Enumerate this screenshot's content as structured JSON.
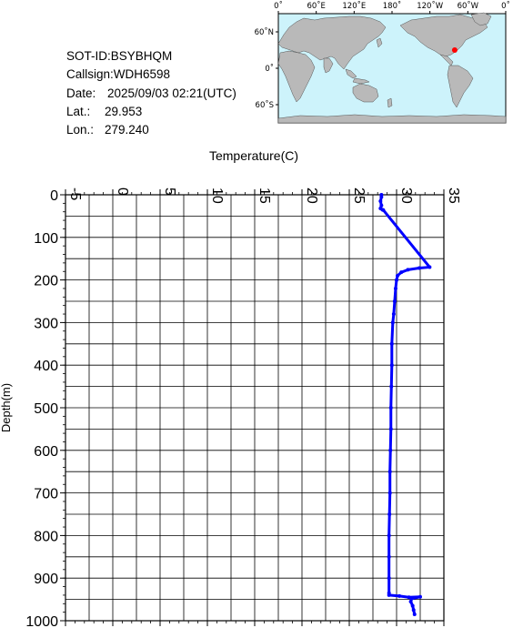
{
  "info": {
    "sot_id": "SOT-ID:BSYBHQM",
    "callsign": "Callsign:WDH6598",
    "date_label": "Date:",
    "date_value": "2025/09/03 02:21(UTC)",
    "lat_label": "Lat.:",
    "lat_value": "29.953",
    "lon_label": "Lon.:",
    "lon_value": "279.240"
  },
  "map": {
    "top_labels": [
      "0˚",
      "60˚E",
      "120˚E",
      "180˚",
      "120˚W",
      "60˚W",
      "0˚"
    ],
    "left_labels": [
      "60˚N",
      "0˚",
      "60˚S"
    ],
    "ocean_color": "#cdf3fb",
    "land_color": "#b9b9b9",
    "marker": {
      "lat": 29.953,
      "lon": 279.24,
      "color": "#ff0000"
    }
  },
  "chart_data": {
    "type": "line",
    "xlabel": "Temperature(C)",
    "ylabel": "Depth(m)",
    "xlim": [
      -5,
      35
    ],
    "ylim": [
      1000,
      0
    ],
    "x_ticks": [
      "-5",
      "0",
      "5",
      "10",
      "15",
      "20",
      "25",
      "30",
      "35"
    ],
    "y_ticks": [
      "0",
      "100",
      "200",
      "300",
      "400",
      "500",
      "600",
      "700",
      "800",
      "900",
      "1000"
    ],
    "grid": true,
    "color": "#0000ff",
    "series": [
      {
        "points": [
          [
            28.4,
            0
          ],
          [
            28.4,
            5
          ],
          [
            28.3,
            15
          ],
          [
            28.4,
            25
          ],
          [
            28.3,
            32
          ],
          [
            28.5,
            35
          ],
          [
            28.6,
            36
          ],
          [
            33.5,
            170
          ],
          [
            32.4,
            172
          ],
          [
            31.2,
            176
          ],
          [
            30.5,
            182
          ],
          [
            30.1,
            190
          ],
          [
            30.0,
            200
          ],
          [
            29.9,
            220
          ],
          [
            29.8,
            250
          ],
          [
            29.7,
            280
          ],
          [
            29.6,
            300
          ],
          [
            29.5,
            350
          ],
          [
            29.5,
            400
          ],
          [
            29.45,
            450
          ],
          [
            29.4,
            500
          ],
          [
            29.4,
            550
          ],
          [
            29.35,
            600
          ],
          [
            29.3,
            650
          ],
          [
            29.3,
            700
          ],
          [
            29.25,
            750
          ],
          [
            29.2,
            800
          ],
          [
            29.2,
            850
          ],
          [
            29.2,
            900
          ],
          [
            29.2,
            935
          ],
          [
            29.2,
            940
          ],
          [
            30.3,
            942
          ],
          [
            31.3,
            945
          ],
          [
            32.5,
            944
          ],
          [
            31.6,
            948
          ],
          [
            31.5,
            955
          ],
          [
            31.7,
            965
          ],
          [
            31.8,
            975
          ],
          [
            31.9,
            985
          ]
        ]
      }
    ]
  }
}
